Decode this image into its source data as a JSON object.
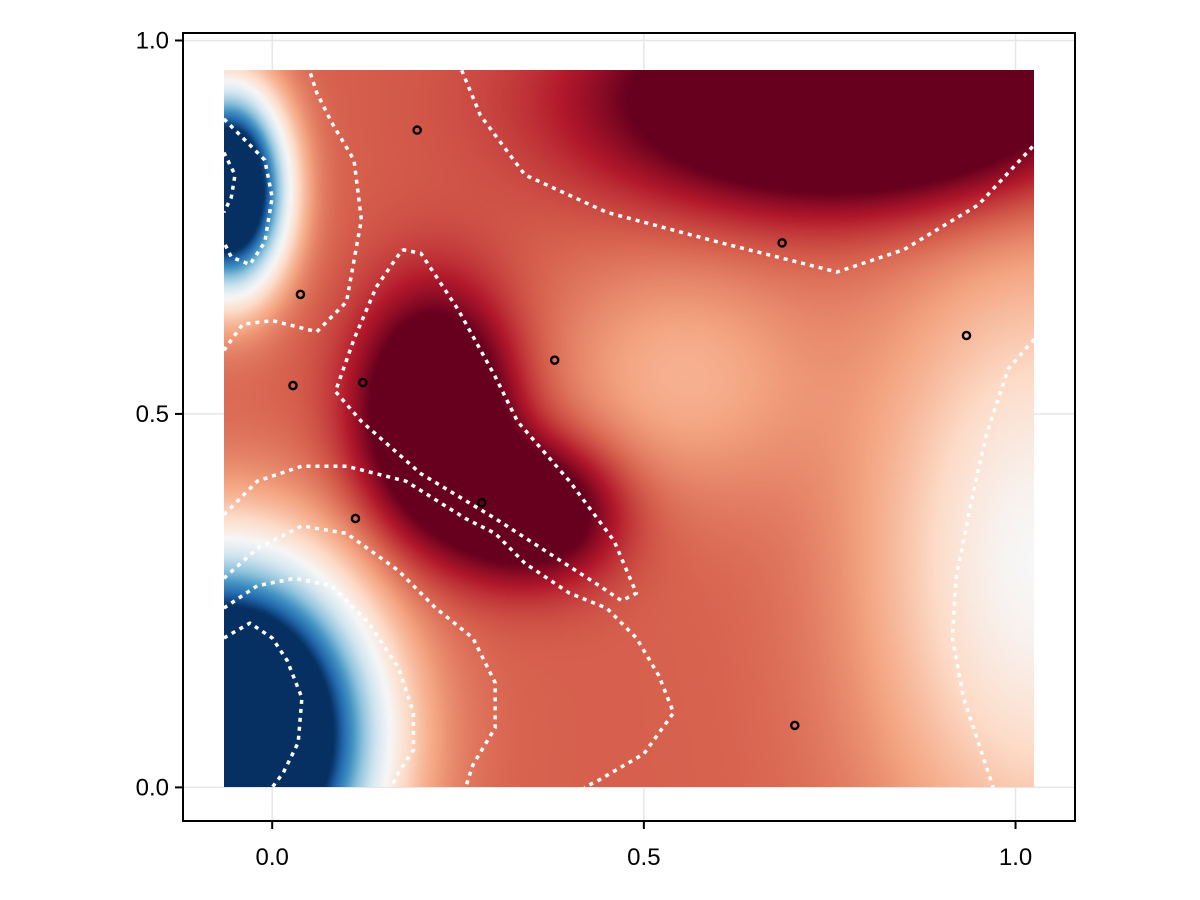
{
  "chart_data": {
    "type": "heatmap",
    "title": "",
    "xlabel": "",
    "ylabel": "",
    "xlim": [
      -0.12,
      1.08
    ],
    "ylim": [
      -0.045,
      1.01
    ],
    "x_ticks": [
      0.0,
      0.5,
      1.0
    ],
    "y_ticks": [
      0.0,
      0.5,
      1.0
    ],
    "x_tick_labels": [
      "0.0",
      "0.5",
      "1.0"
    ],
    "y_tick_labels": [
      "0.0",
      "0.5",
      "1.0"
    ],
    "grid": true,
    "legend": "none",
    "colormap": "RdBu",
    "colormap_stops": [
      "#053061",
      "#2166ac",
      "#4393c3",
      "#92c5de",
      "#d1e5f0",
      "#f7f7f7",
      "#fddbc7",
      "#f4a582",
      "#d6604d",
      "#b2182b",
      "#67001f"
    ],
    "heatmap_extent": {
      "x": [
        -0.065,
        1.025
      ],
      "y": [
        0.0,
        0.96
      ]
    },
    "contour_style": "white dotted",
    "samples": [
      {
        "x": 0.195,
        "y": 0.88
      },
      {
        "x": 0.038,
        "y": 0.66
      },
      {
        "x": 0.028,
        "y": 0.538
      },
      {
        "x": 0.122,
        "y": 0.542
      },
      {
        "x": 0.38,
        "y": 0.572
      },
      {
        "x": 0.282,
        "y": 0.381
      },
      {
        "x": 0.112,
        "y": 0.36
      },
      {
        "x": 0.686,
        "y": 0.729
      },
      {
        "x": 0.934,
        "y": 0.605
      },
      {
        "x": 0.703,
        "y": 0.083
      }
    ],
    "contours": [
      {
        "name": "upper-right-region",
        "points": [
          [
            0.255,
            0.96
          ],
          [
            0.28,
            0.9
          ],
          [
            0.34,
            0.82
          ],
          [
            0.45,
            0.77
          ],
          [
            0.6,
            0.73
          ],
          [
            0.7,
            0.705
          ],
          [
            0.76,
            0.69
          ],
          [
            0.85,
            0.72
          ],
          [
            0.95,
            0.78
          ],
          [
            1.025,
            0.86
          ]
        ]
      },
      {
        "name": "central-triangle",
        "points": [
          [
            0.175,
            0.72
          ],
          [
            0.2,
            0.715
          ],
          [
            0.25,
            0.64
          ],
          [
            0.3,
            0.55
          ],
          [
            0.33,
            0.49
          ],
          [
            0.4,
            0.41
          ],
          [
            0.46,
            0.33
          ],
          [
            0.49,
            0.26
          ],
          [
            0.47,
            0.25
          ],
          [
            0.44,
            0.27
          ],
          [
            0.3,
            0.36
          ],
          [
            0.2,
            0.42
          ],
          [
            0.12,
            0.49
          ],
          [
            0.085,
            0.53
          ],
          [
            0.11,
            0.6
          ],
          [
            0.14,
            0.67
          ],
          [
            0.175,
            0.72
          ]
        ]
      },
      {
        "name": "top-left-outer",
        "points": [
          [
            -0.065,
            0.585
          ],
          [
            -0.04,
            0.62
          ],
          [
            0.0,
            0.625
          ],
          [
            0.06,
            0.61
          ],
          [
            0.1,
            0.65
          ],
          [
            0.12,
            0.76
          ],
          [
            0.11,
            0.84
          ],
          [
            0.08,
            0.89
          ],
          [
            0.06,
            0.93
          ],
          [
            0.05,
            0.96
          ]
        ]
      },
      {
        "name": "top-left-inner",
        "points": [
          [
            -0.065,
            0.895
          ],
          [
            -0.04,
            0.87
          ],
          [
            -0.01,
            0.84
          ],
          [
            0.0,
            0.79
          ],
          [
            -0.01,
            0.73
          ],
          [
            -0.03,
            0.7
          ],
          [
            -0.055,
            0.71
          ],
          [
            -0.065,
            0.73
          ]
        ]
      },
      {
        "name": "top-left-core",
        "points": [
          [
            -0.065,
            0.85
          ],
          [
            -0.05,
            0.82
          ],
          [
            -0.055,
            0.79
          ],
          [
            -0.065,
            0.77
          ]
        ]
      },
      {
        "name": "bottom-left-1",
        "points": [
          [
            -0.065,
            0.365
          ],
          [
            -0.02,
            0.41
          ],
          [
            0.04,
            0.43
          ],
          [
            0.1,
            0.43
          ],
          [
            0.18,
            0.41
          ],
          [
            0.26,
            0.36
          ],
          [
            0.3,
            0.34
          ],
          [
            0.34,
            0.3
          ],
          [
            0.4,
            0.26
          ],
          [
            0.45,
            0.24
          ],
          [
            0.49,
            0.2
          ],
          [
            0.52,
            0.15
          ],
          [
            0.54,
            0.1
          ],
          [
            0.5,
            0.045
          ],
          [
            0.44,
            0.01
          ],
          [
            0.42,
            0.0
          ]
        ]
      },
      {
        "name": "bottom-left-2",
        "points": [
          [
            -0.065,
            0.28
          ],
          [
            -0.02,
            0.32
          ],
          [
            0.04,
            0.35
          ],
          [
            0.1,
            0.34
          ],
          [
            0.17,
            0.29
          ],
          [
            0.22,
            0.24
          ],
          [
            0.27,
            0.2
          ],
          [
            0.3,
            0.14
          ],
          [
            0.3,
            0.08
          ],
          [
            0.27,
            0.03
          ],
          [
            0.26,
            0.0
          ]
        ]
      },
      {
        "name": "bottom-left-3",
        "points": [
          [
            -0.065,
            0.24
          ],
          [
            -0.02,
            0.27
          ],
          [
            0.03,
            0.28
          ],
          [
            0.08,
            0.27
          ],
          [
            0.13,
            0.22
          ],
          [
            0.17,
            0.16
          ],
          [
            0.19,
            0.1
          ],
          [
            0.19,
            0.05
          ],
          [
            0.17,
            0.02
          ],
          [
            0.16,
            0.0
          ]
        ]
      },
      {
        "name": "bottom-left-4",
        "points": [
          [
            -0.065,
            0.2
          ],
          [
            -0.03,
            0.22
          ],
          [
            0.0,
            0.2
          ],
          [
            0.02,
            0.17
          ],
          [
            0.04,
            0.12
          ],
          [
            0.035,
            0.06
          ],
          [
            0.015,
            0.02
          ],
          [
            0.0,
            0.0
          ]
        ]
      },
      {
        "name": "right-edge",
        "points": [
          [
            1.025,
            0.6
          ],
          [
            0.99,
            0.56
          ],
          [
            0.96,
            0.47
          ],
          [
            0.94,
            0.38
          ],
          [
            0.92,
            0.28
          ],
          [
            0.915,
            0.2
          ],
          [
            0.93,
            0.12
          ],
          [
            0.95,
            0.06
          ],
          [
            0.97,
            0.0
          ]
        ]
      }
    ]
  }
}
